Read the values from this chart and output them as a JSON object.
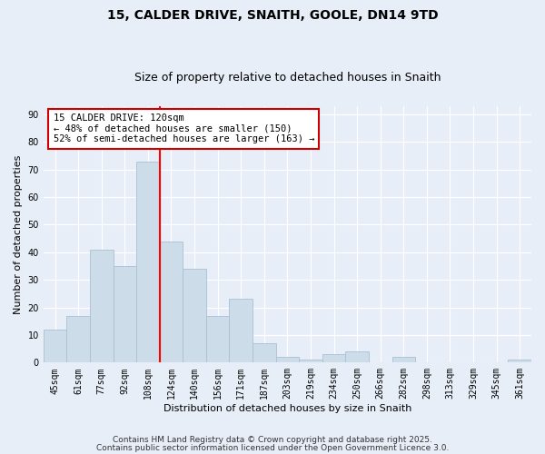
{
  "title_line1": "15, CALDER DRIVE, SNAITH, GOOLE, DN14 9TD",
  "title_line2": "Size of property relative to detached houses in Snaith",
  "xlabel": "Distribution of detached houses by size in Snaith",
  "ylabel": "Number of detached properties",
  "categories": [
    "45sqm",
    "61sqm",
    "77sqm",
    "92sqm",
    "108sqm",
    "124sqm",
    "140sqm",
    "156sqm",
    "171sqm",
    "187sqm",
    "203sqm",
    "219sqm",
    "234sqm",
    "250sqm",
    "266sqm",
    "282sqm",
    "298sqm",
    "313sqm",
    "329sqm",
    "345sqm",
    "361sqm"
  ],
  "values": [
    12,
    17,
    41,
    35,
    73,
    44,
    34,
    17,
    23,
    7,
    2,
    1,
    3,
    4,
    0,
    2,
    0,
    0,
    0,
    0,
    1
  ],
  "bar_color": "#ccdce8",
  "bar_edge_color": "#aac0d4",
  "red_line_index": 5,
  "annotation_text": "15 CALDER DRIVE: 120sqm\n← 48% of detached houses are smaller (150)\n52% of semi-detached houses are larger (163) →",
  "ylim": [
    0,
    93
  ],
  "yticks": [
    0,
    10,
    20,
    30,
    40,
    50,
    60,
    70,
    80,
    90
  ],
  "bg_color": "#e8eef8",
  "plot_bg_color": "#e8eef8",
  "footer_line1": "Contains HM Land Registry data © Crown copyright and database right 2025.",
  "footer_line2": "Contains public sector information licensed under the Open Government Licence 3.0.",
  "title_fontsize": 10,
  "subtitle_fontsize": 9,
  "axis_label_fontsize": 8,
  "tick_fontsize": 7,
  "annotation_fontsize": 7.5,
  "footer_fontsize": 6.5
}
